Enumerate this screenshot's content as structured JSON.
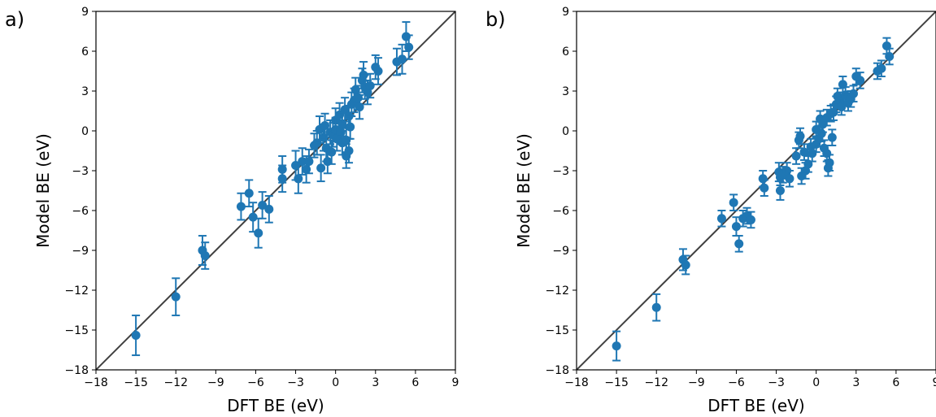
{
  "chart_data": [
    {
      "panel_label": "a)",
      "type": "scatter",
      "xlabel": "DFT BE (eV)",
      "ylabel": "Model BE (eV)",
      "xlim": [
        -18,
        9
      ],
      "ylim": [
        -18,
        9
      ],
      "xticks": [
        "−18",
        "−15",
        "−12",
        "−9",
        "−6",
        "−3",
        "0",
        "3",
        "6",
        "9"
      ],
      "yticks": [
        "−18",
        "−15",
        "−12",
        "−9",
        "−6",
        "−3",
        "0",
        "3",
        "6",
        "9"
      ],
      "reference_line": "y = x",
      "marker_color": "#1f77b4",
      "line_color": "#404040",
      "points": [
        [
          -15.0,
          -15.4,
          1.5
        ],
        [
          -12.0,
          -12.5,
          1.4
        ],
        [
          -10.0,
          -9.0,
          1.1
        ],
        [
          -9.8,
          -9.4,
          1.0
        ],
        [
          -7.1,
          -5.7,
          1.0
        ],
        [
          -6.5,
          -4.7,
          1.0
        ],
        [
          -6.2,
          -6.5,
          1.1
        ],
        [
          -5.8,
          -7.7,
          1.1
        ],
        [
          -5.5,
          -5.6,
          1.0
        ],
        [
          -5.0,
          -5.9,
          1.0
        ],
        [
          -4.0,
          -2.9,
          1.0
        ],
        [
          -4.0,
          -3.6,
          1.0
        ],
        [
          -3.0,
          -2.6,
          1.1
        ],
        [
          -2.8,
          -3.6,
          1.1
        ],
        [
          -2.5,
          -2.3,
          1.0
        ],
        [
          -2.2,
          -2.9,
          1.0
        ],
        [
          -2.0,
          -2.3,
          0.9
        ],
        [
          -1.6,
          -1.1,
          0.9
        ],
        [
          -1.4,
          -0.9,
          0.9
        ],
        [
          -1.2,
          0.1,
          1.0
        ],
        [
          -1.1,
          -2.8,
          1.0
        ],
        [
          -0.9,
          -0.5,
          1.0
        ],
        [
          -0.8,
          0.4,
          0.9
        ],
        [
          -0.7,
          -1.3,
          1.0
        ],
        [
          -0.6,
          -2.3,
          0.9
        ],
        [
          -0.4,
          -0.1,
          0.9
        ],
        [
          -0.3,
          -1.6,
          0.9
        ],
        [
          -0.2,
          -0.3,
          0.9
        ],
        [
          0.0,
          0.8,
          0.9
        ],
        [
          0.0,
          0.1,
          0.9
        ],
        [
          0.1,
          -0.6,
          0.9
        ],
        [
          0.3,
          1.2,
          0.9
        ],
        [
          0.4,
          -0.1,
          0.9
        ],
        [
          0.5,
          0.5,
          0.9
        ],
        [
          0.5,
          -0.9,
          0.9
        ],
        [
          0.7,
          1.6,
          0.9
        ],
        [
          0.8,
          -1.9,
          0.9
        ],
        [
          0.8,
          -0.7,
          0.9
        ],
        [
          1.0,
          -1.5,
          0.9
        ],
        [
          1.0,
          1.1,
          0.8
        ],
        [
          1.1,
          0.3,
          0.9
        ],
        [
          1.2,
          2.0,
          0.9
        ],
        [
          1.4,
          2.3,
          0.9
        ],
        [
          1.5,
          3.1,
          0.9
        ],
        [
          1.7,
          2.5,
          0.9
        ],
        [
          1.8,
          1.8,
          0.9
        ],
        [
          2.0,
          3.8,
          0.9
        ],
        [
          2.1,
          4.2,
          1.0
        ],
        [
          2.2,
          3.3,
          0.9
        ],
        [
          2.4,
          2.9,
          0.9
        ],
        [
          2.6,
          3.4,
          0.9
        ],
        [
          3.0,
          4.8,
          0.9
        ],
        [
          3.2,
          4.5,
          1.0
        ],
        [
          4.6,
          5.2,
          1.0
        ],
        [
          5.0,
          5.4,
          1.1
        ],
        [
          5.3,
          7.1,
          1.1
        ],
        [
          5.5,
          6.3,
          0.9
        ]
      ]
    },
    {
      "panel_label": "b)",
      "type": "scatter",
      "xlabel": "DFT BE (eV)",
      "ylabel": "Model BE (eV)",
      "xlim": [
        -18,
        9
      ],
      "ylim": [
        -18,
        9
      ],
      "xticks": [
        "−18",
        "−15",
        "−12",
        "−9",
        "−6",
        "−3",
        "0",
        "3",
        "6",
        "9"
      ],
      "yticks": [
        "−18",
        "−15",
        "−12",
        "−9",
        "−6",
        "−3",
        "0",
        "3",
        "6",
        "9"
      ],
      "reference_line": "y = x",
      "marker_color": "#1f77b4",
      "line_color": "#404040",
      "points": [
        [
          -15.0,
          -16.2,
          1.1
        ],
        [
          -12.0,
          -13.3,
          1.0
        ],
        [
          -10.0,
          -9.7,
          0.8
        ],
        [
          -9.8,
          -10.1,
          0.7
        ],
        [
          -7.1,
          -6.6,
          0.6
        ],
        [
          -6.2,
          -5.4,
          0.6
        ],
        [
          -6.0,
          -7.2,
          0.7
        ],
        [
          -5.8,
          -8.5,
          0.6
        ],
        [
          -5.5,
          -6.6,
          0.6
        ],
        [
          -5.2,
          -6.4,
          0.6
        ],
        [
          -4.9,
          -6.7,
          0.6
        ],
        [
          -4.0,
          -3.6,
          0.6
        ],
        [
          -3.9,
          -4.3,
          0.6
        ],
        [
          -2.8,
          -3.1,
          0.7
        ],
        [
          -2.7,
          -3.5,
          0.6
        ],
        [
          -2.7,
          -4.5,
          0.7
        ],
        [
          -2.5,
          -3.3,
          0.6
        ],
        [
          -2.2,
          -3.0,
          0.6
        ],
        [
          -2.0,
          -3.6,
          0.6
        ],
        [
          -1.5,
          -1.9,
          0.6
        ],
        [
          -1.3,
          -0.7,
          0.6
        ],
        [
          -1.2,
          -0.4,
          0.6
        ],
        [
          -1.1,
          -3.4,
          0.6
        ],
        [
          -0.9,
          -1.6,
          0.6
        ],
        [
          -0.8,
          -3.0,
          0.6
        ],
        [
          -0.6,
          -2.5,
          0.6
        ],
        [
          -0.4,
          -1.2,
          0.6
        ],
        [
          -0.3,
          -1.7,
          0.6
        ],
        [
          0.0,
          0.1,
          0.6
        ],
        [
          0.0,
          -1.0,
          0.6
        ],
        [
          0.2,
          -0.6,
          0.6
        ],
        [
          0.3,
          0.9,
          0.6
        ],
        [
          0.4,
          -0.2,
          0.6
        ],
        [
          0.5,
          0.5,
          0.6
        ],
        [
          0.6,
          -1.3,
          0.6
        ],
        [
          0.8,
          1.0,
          0.6
        ],
        [
          0.8,
          -1.7,
          0.6
        ],
        [
          0.9,
          -2.8,
          0.6
        ],
        [
          1.0,
          -2.4,
          0.6
        ],
        [
          1.1,
          1.3,
          0.6
        ],
        [
          1.2,
          -0.5,
          0.6
        ],
        [
          1.3,
          1.4,
          0.6
        ],
        [
          1.5,
          2.0,
          0.6
        ],
        [
          1.6,
          2.6,
          0.6
        ],
        [
          1.8,
          2.3,
          0.6
        ],
        [
          1.9,
          1.8,
          0.6
        ],
        [
          2.0,
          3.5,
          0.6
        ],
        [
          2.2,
          2.7,
          0.6
        ],
        [
          2.4,
          2.1,
          0.6
        ],
        [
          2.6,
          2.4,
          0.6
        ],
        [
          2.8,
          2.8,
          0.6
        ],
        [
          3.0,
          4.1,
          0.6
        ],
        [
          3.3,
          3.8,
          0.6
        ],
        [
          4.6,
          4.5,
          0.6
        ],
        [
          4.9,
          4.7,
          0.6
        ],
        [
          5.3,
          6.4,
          0.6
        ],
        [
          5.5,
          5.6,
          0.6
        ]
      ]
    }
  ]
}
